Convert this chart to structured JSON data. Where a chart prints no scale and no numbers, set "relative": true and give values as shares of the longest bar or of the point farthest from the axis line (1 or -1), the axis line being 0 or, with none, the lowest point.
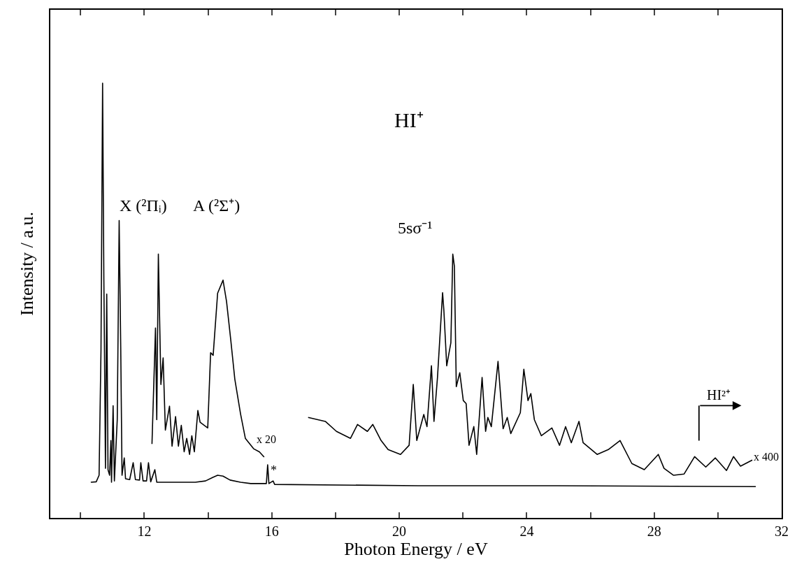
{
  "chart_data": {
    "type": "line",
    "title": "HI⁺",
    "xlabel": "Photon Energy / eV",
    "ylabel": "Intensity / a.u.",
    "relative": true,
    "marker": "none",
    "line_style": "solid",
    "xlim": [
      9.05,
      32
    ],
    "xticks": [
      {
        "value": 10,
        "label": null
      },
      12,
      {
        "value": 14,
        "label": null
      },
      16,
      {
        "value": 18,
        "label": null
      },
      20,
      {
        "value": 22,
        "label": null
      },
      24,
      {
        "value": 26,
        "label": null
      },
      28,
      {
        "value": 30,
        "label": null
      },
      32
    ],
    "series": [
      {
        "color": "#000000",
        "x": [
          10.32,
          10.49,
          10.58,
          10.64,
          10.69,
          10.73,
          10.78,
          10.82,
          10.86,
          10.91,
          10.95,
          10.97,
          11.02,
          11.06,
          11.15,
          11.21,
          11.26,
          11.3,
          11.37,
          11.41,
          11.54,
          11.65,
          11.72,
          11.85,
          11.89,
          11.96,
          12.07,
          12.13,
          12.2,
          12.33,
          12.39,
          13.6,
          13.92,
          14.14,
          14.3,
          14.47,
          14.69,
          15.02,
          15.34,
          15.83,
          15.87,
          15.91,
          16.04,
          16.09,
          20.59,
          24.96,
          31.19
        ],
        "values": [
          0.082,
          0.083,
          0.098,
          0.387,
          1.0,
          0.547,
          0.114,
          0.515,
          0.111,
          0.098,
          0.178,
          0.082,
          0.258,
          0.085,
          0.226,
          0.684,
          0.387,
          0.098,
          0.138,
          0.09,
          0.088,
          0.127,
          0.088,
          0.087,
          0.127,
          0.085,
          0.085,
          0.127,
          0.083,
          0.111,
          0.082,
          0.082,
          0.085,
          0.093,
          0.098,
          0.096,
          0.087,
          0.082,
          0.079,
          0.079,
          0.122,
          0.079,
          0.085,
          0.077,
          0.074,
          0.074,
          0.072
        ]
      },
      {
        "color": "#000000",
        "x": [
          12.24,
          12.35,
          12.39,
          12.44,
          12.52,
          12.59,
          12.66,
          12.79,
          12.87,
          12.98,
          13.07,
          13.16,
          13.25,
          13.33,
          13.42,
          13.49,
          13.57,
          13.68,
          13.75,
          13.99,
          14.08,
          14.16,
          14.3,
          14.47,
          14.58,
          14.71,
          14.84,
          15.02,
          15.17,
          15.43,
          15.61,
          15.76
        ],
        "values": [
          0.17,
          0.437,
          0.226,
          0.607,
          0.307,
          0.368,
          0.202,
          0.257,
          0.165,
          0.233,
          0.165,
          0.213,
          0.152,
          0.183,
          0.146,
          0.189,
          0.152,
          0.247,
          0.22,
          0.207,
          0.38,
          0.374,
          0.517,
          0.547,
          0.498,
          0.411,
          0.319,
          0.239,
          0.183,
          0.159,
          0.152,
          0.14
        ]
      },
      {
        "color": "#000000",
        "x": [
          17.14,
          17.68,
          18.03,
          18.47,
          18.69,
          19.0,
          19.17,
          19.43,
          19.65,
          20.04,
          20.31,
          20.44,
          20.55,
          20.77,
          20.87,
          21.01,
          21.09,
          21.2,
          21.36,
          21.4,
          21.49,
          21.62,
          21.68,
          21.73,
          21.79,
          21.9,
          22.01,
          22.1,
          22.19,
          22.34,
          22.43,
          22.6,
          22.71,
          22.78,
          22.89,
          23.1,
          23.26,
          23.39,
          23.5,
          23.8,
          23.91,
          24.04,
          24.13,
          24.24,
          24.46,
          24.79,
          25.03,
          25.22,
          25.4,
          25.64,
          25.77,
          26.21,
          26.56,
          26.93,
          27.3,
          27.69,
          28.13,
          28.31,
          28.61,
          28.94,
          29.27,
          29.62,
          29.92,
          30.27,
          30.49,
          30.71,
          31.08
        ],
        "values": [
          0.231,
          0.222,
          0.199,
          0.183,
          0.215,
          0.199,
          0.215,
          0.178,
          0.157,
          0.146,
          0.167,
          0.307,
          0.178,
          0.238,
          0.21,
          0.35,
          0.222,
          0.323,
          0.518,
          0.478,
          0.35,
          0.403,
          0.607,
          0.579,
          0.302,
          0.334,
          0.27,
          0.263,
          0.167,
          0.21,
          0.146,
          0.323,
          0.199,
          0.231,
          0.21,
          0.36,
          0.205,
          0.231,
          0.194,
          0.242,
          0.342,
          0.27,
          0.286,
          0.226,
          0.189,
          0.207,
          0.167,
          0.21,
          0.173,
          0.222,
          0.173,
          0.146,
          0.157,
          0.178,
          0.125,
          0.111,
          0.146,
          0.114,
          0.098,
          0.101,
          0.141,
          0.117,
          0.138,
          0.109,
          0.141,
          0.119,
          0.133
        ]
      }
    ],
    "annotations": [
      "X (²Πᵢ)",
      "A (²Σ⁺)",
      "5sσ⁻¹",
      "x 20",
      "x 400",
      "*",
      "HI²⁺"
    ]
  }
}
